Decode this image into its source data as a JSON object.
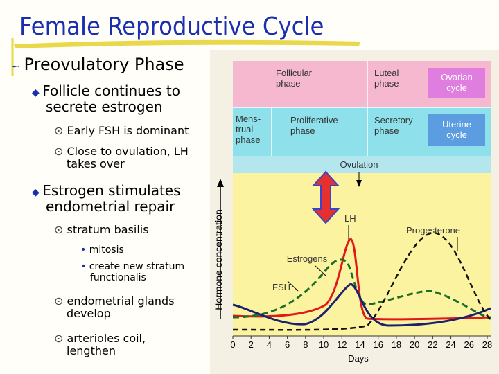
{
  "title": "Female Reproductive Cycle",
  "bullets": {
    "heading": "Preovulatory Phase",
    "items": [
      {
        "text": "Follicle continues to secrete estrogen",
        "subitems": [
          "Early FSH is dominant",
          "Close to ovulation, LH takes over"
        ]
      },
      {
        "text": "Estrogen stimulates endometrial repair",
        "subitems": [
          {
            "text": "stratum basilis",
            "points": [
              "mitosis",
              "create new stratum functionalis"
            ]
          },
          {
            "text": "endometrial glands develop"
          },
          {
            "text": "arterioles coil, lengthen"
          }
        ]
      }
    ]
  },
  "figure": {
    "ovarian": {
      "follicular": [
        "Follicular",
        "phase"
      ],
      "luteal": [
        "Luteal",
        "phase"
      ],
      "cycle": [
        "Ovarian",
        "cycle"
      ]
    },
    "uterine": {
      "menstrual": [
        "Mens-",
        "trual",
        "phase"
      ],
      "proliferative": [
        "Proliferative",
        "phase"
      ],
      "secretory": [
        "Secretory",
        "phase"
      ],
      "cycle": [
        "Uterine",
        "cycle"
      ]
    },
    "ovulation": "Ovulation",
    "curves": {
      "lh": "LH",
      "progesterone": "Progesterone",
      "estrogens": "Estrogens",
      "fsh": "FSH"
    },
    "y_label": "Hormone concentration",
    "x_label": "Days",
    "x_ticks": [
      0,
      2,
      4,
      6,
      8,
      10,
      12,
      14,
      16,
      18,
      20,
      22,
      24,
      26,
      28
    ]
  }
}
